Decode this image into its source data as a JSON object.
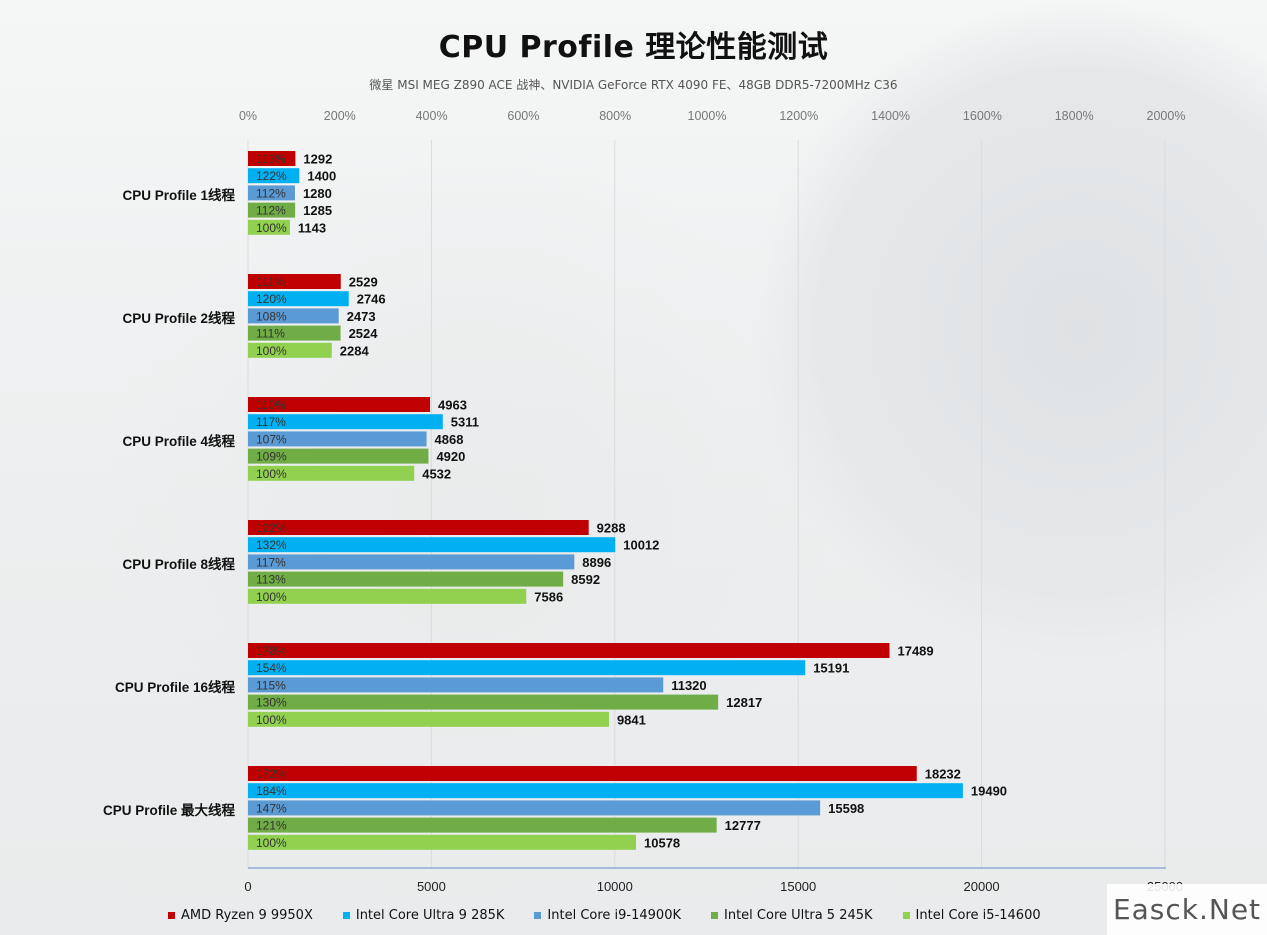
{
  "chart_data": {
    "type": "bar",
    "title": "CPU Profile 理论性能测试",
    "subtitle": "微星 MSI MEG Z890 ACE 战神、NVIDIA GeForce RTX 4090 FE、48GB DDR5-7200MHz C36",
    "categories": [
      "CPU Profile 1线程",
      "CPU Profile 2线程",
      "CPU Profile 4线程",
      "CPU Profile 8线程",
      "CPU Profile 16线程",
      "CPU Profile 最大线程"
    ],
    "series": [
      {
        "name": "AMD Ryzen 9 9950X",
        "color": "#c00000",
        "values": [
          1292,
          2529,
          4963,
          9288,
          17489,
          18232
        ],
        "percent_labels": [
          "113%",
          "111%",
          "110%",
          "122%",
          "178%",
          "172%"
        ]
      },
      {
        "name": "Intel Core Ultra 9 285K",
        "color": "#00b0f0",
        "values": [
          1400,
          2746,
          5311,
          10012,
          15191,
          19490
        ],
        "percent_labels": [
          "122%",
          "120%",
          "117%",
          "132%",
          "154%",
          "184%"
        ]
      },
      {
        "name": "Intel Core i9-14900K",
        "color": "#5b9bd5",
        "values": [
          1280,
          2473,
          4868,
          8896,
          11320,
          15598
        ],
        "percent_labels": [
          "112%",
          "108%",
          "107%",
          "117%",
          "115%",
          "147%"
        ]
      },
      {
        "name": "Intel Core Ultra 5 245K",
        "color": "#70ad47",
        "values": [
          1285,
          2524,
          4920,
          8592,
          12817,
          12777
        ],
        "percent_labels": [
          "112%",
          "111%",
          "109%",
          "113%",
          "130%",
          "121%"
        ]
      },
      {
        "name": "Intel Core i5-14600",
        "color": "#92d050",
        "values": [
          1143,
          2284,
          4532,
          7586,
          9841,
          10578
        ],
        "percent_labels": [
          "100%",
          "100%",
          "100%",
          "100%",
          "100%",
          "100%"
        ]
      }
    ],
    "x_axis_bottom": {
      "ticks": [
        "0",
        "5000",
        "10000",
        "15000",
        "20000",
        "25000"
      ],
      "range": [
        0,
        25000
      ]
    },
    "x_axis_top": {
      "ticks": [
        "0%",
        "200%",
        "400%",
        "600%",
        "800%",
        "1000%",
        "1200%",
        "1400%",
        "1600%",
        "1800%",
        "2000%"
      ],
      "range": [
        0,
        2000
      ]
    },
    "orientation": "horizontal",
    "grid": true,
    "legend_position": "bottom"
  },
  "watermark": "Easck.Net"
}
